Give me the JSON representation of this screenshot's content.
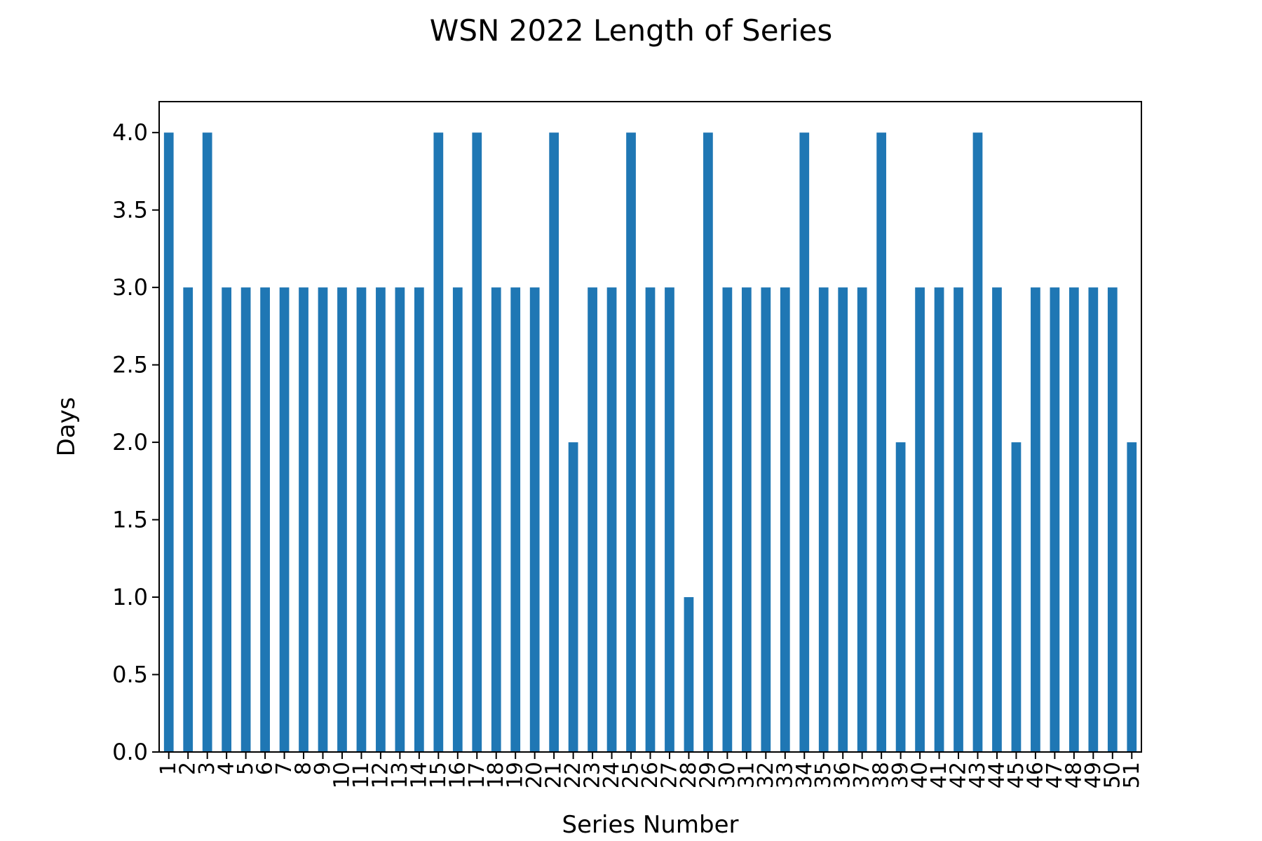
{
  "chart_data": {
    "type": "bar",
    "title": "WSN 2022 Length of Series",
    "xlabel": "Series Number",
    "ylabel": "Days",
    "ylim": [
      0,
      4.2
    ],
    "yticks": [
      "0.0",
      "0.5",
      "1.0",
      "1.5",
      "2.0",
      "2.5",
      "3.0",
      "3.5",
      "4.0"
    ],
    "bar_color": "#1f77b4",
    "grid": false,
    "categories": [
      "1",
      "2",
      "3",
      "4",
      "5",
      "6",
      "7",
      "8",
      "9",
      "10",
      "11",
      "12",
      "13",
      "14",
      "15",
      "16",
      "17",
      "18",
      "19",
      "20",
      "21",
      "22",
      "23",
      "24",
      "25",
      "26",
      "27",
      "28",
      "29",
      "30",
      "31",
      "32",
      "33",
      "34",
      "35",
      "36",
      "37",
      "38",
      "39",
      "40",
      "41",
      "42",
      "43",
      "44",
      "45",
      "46",
      "47",
      "48",
      "49",
      "50",
      "51"
    ],
    "values": [
      4,
      3,
      4,
      3,
      3,
      3,
      3,
      3,
      3,
      3,
      3,
      3,
      3,
      3,
      4,
      3,
      4,
      3,
      3,
      3,
      4,
      2,
      3,
      3,
      4,
      3,
      3,
      1,
      4,
      3,
      3,
      3,
      3,
      4,
      3,
      3,
      3,
      4,
      2,
      3,
      3,
      3,
      4,
      3,
      2,
      3,
      3,
      3,
      3,
      3,
      2
    ]
  }
}
